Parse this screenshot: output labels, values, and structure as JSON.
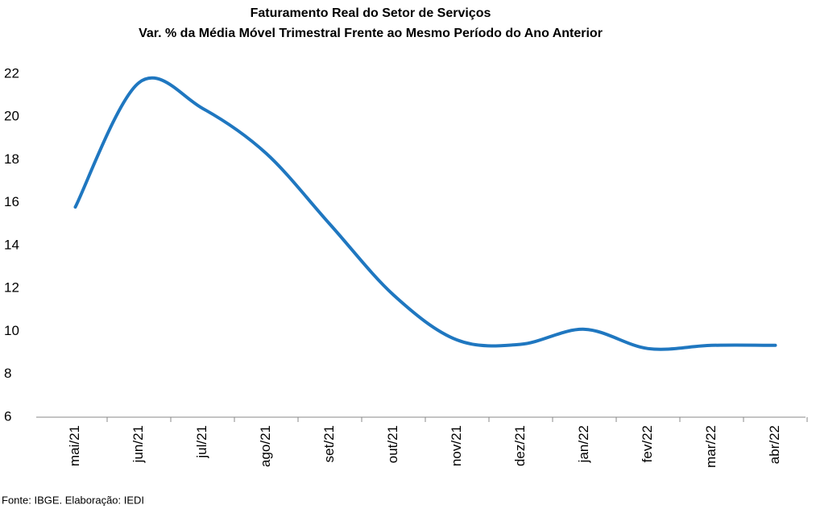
{
  "chart_data": {
    "type": "line",
    "title": "Faturamento Real do Setor de Serviços",
    "subtitle": "Var. % da Média Móvel Trimestral Frente ao Mesmo Período do Ano Anterior",
    "source": "Fonte: IBGE. Elaboração: IEDI",
    "categories": [
      "mai/21",
      "jun/21",
      "jul/21",
      "ago/21",
      "set/21",
      "out/21",
      "nov/21",
      "dez/21",
      "jan/22",
      "fev/22",
      "mar/22",
      "abr/22"
    ],
    "series": [
      {
        "name": "Faturamento",
        "color": "#1f77c0",
        "values": [
          15.8,
          21.6,
          20.4,
          18.3,
          15.0,
          11.7,
          9.6,
          9.4,
          10.1,
          9.2,
          9.35,
          9.35
        ]
      }
    ],
    "ylim": [
      6,
      22
    ],
    "yticks": [
      6,
      8,
      10,
      12,
      14,
      16,
      18,
      20,
      22
    ],
    "grid": false
  }
}
